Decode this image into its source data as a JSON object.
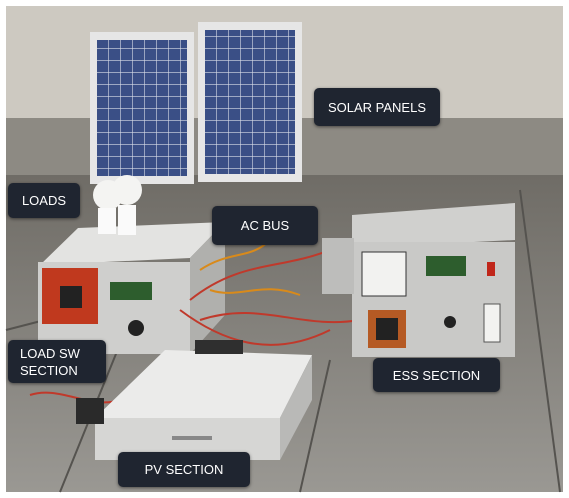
{
  "labels": {
    "solar_panels": "SOLAR PANELS",
    "loads": "LOADS",
    "ac_bus": "AC BUS",
    "load_sw_section": "LOAD SW SECTION",
    "ess_section": "ESS SECTION",
    "pv_section": "PV SECTION"
  }
}
